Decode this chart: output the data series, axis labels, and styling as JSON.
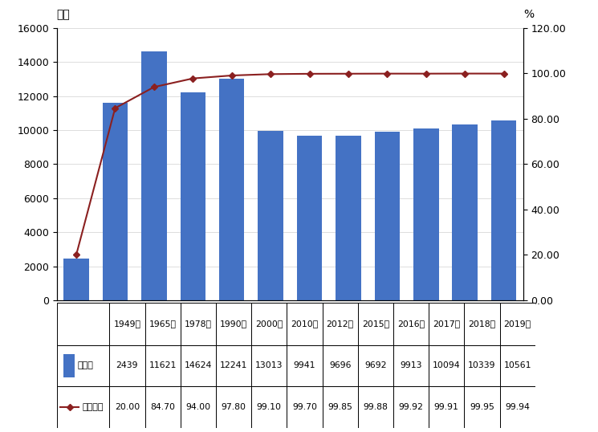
{
  "years": [
    "1949年",
    "1965年",
    "1978年",
    "1990年",
    "2000年",
    "2010年",
    "2012年",
    "2015年",
    "2016年",
    "2017年",
    "2018年",
    "2019年"
  ],
  "enrollment": [
    2439,
    11621,
    14624,
    12241,
    13013,
    9941,
    9696,
    9692,
    9913,
    10094,
    10339,
    10561
  ],
  "net_rate": [
    20.0,
    84.7,
    94.0,
    97.8,
    99.1,
    99.7,
    99.85,
    99.88,
    99.92,
    99.91,
    99.95,
    99.94
  ],
  "bar_color": "#4472C4",
  "line_color": "#8B2020",
  "marker_color": "#8B2020",
  "left_ylabel": "万人",
  "right_ylabel": "%",
  "left_ylim": [
    0,
    16000
  ],
  "left_yticks": [
    0,
    2000,
    4000,
    6000,
    8000,
    10000,
    12000,
    14000,
    16000
  ],
  "right_ylim": [
    0.0,
    120.0
  ],
  "right_yticks": [
    0.0,
    20.0,
    40.0,
    60.0,
    80.0,
    100.0,
    120.0
  ],
  "legend_label_bar": "在校生",
  "legend_label_line": "净入学率",
  "bg_color": "#FFFFFF",
  "border_color": "#000000",
  "grid_color": "#D0D0D0"
}
